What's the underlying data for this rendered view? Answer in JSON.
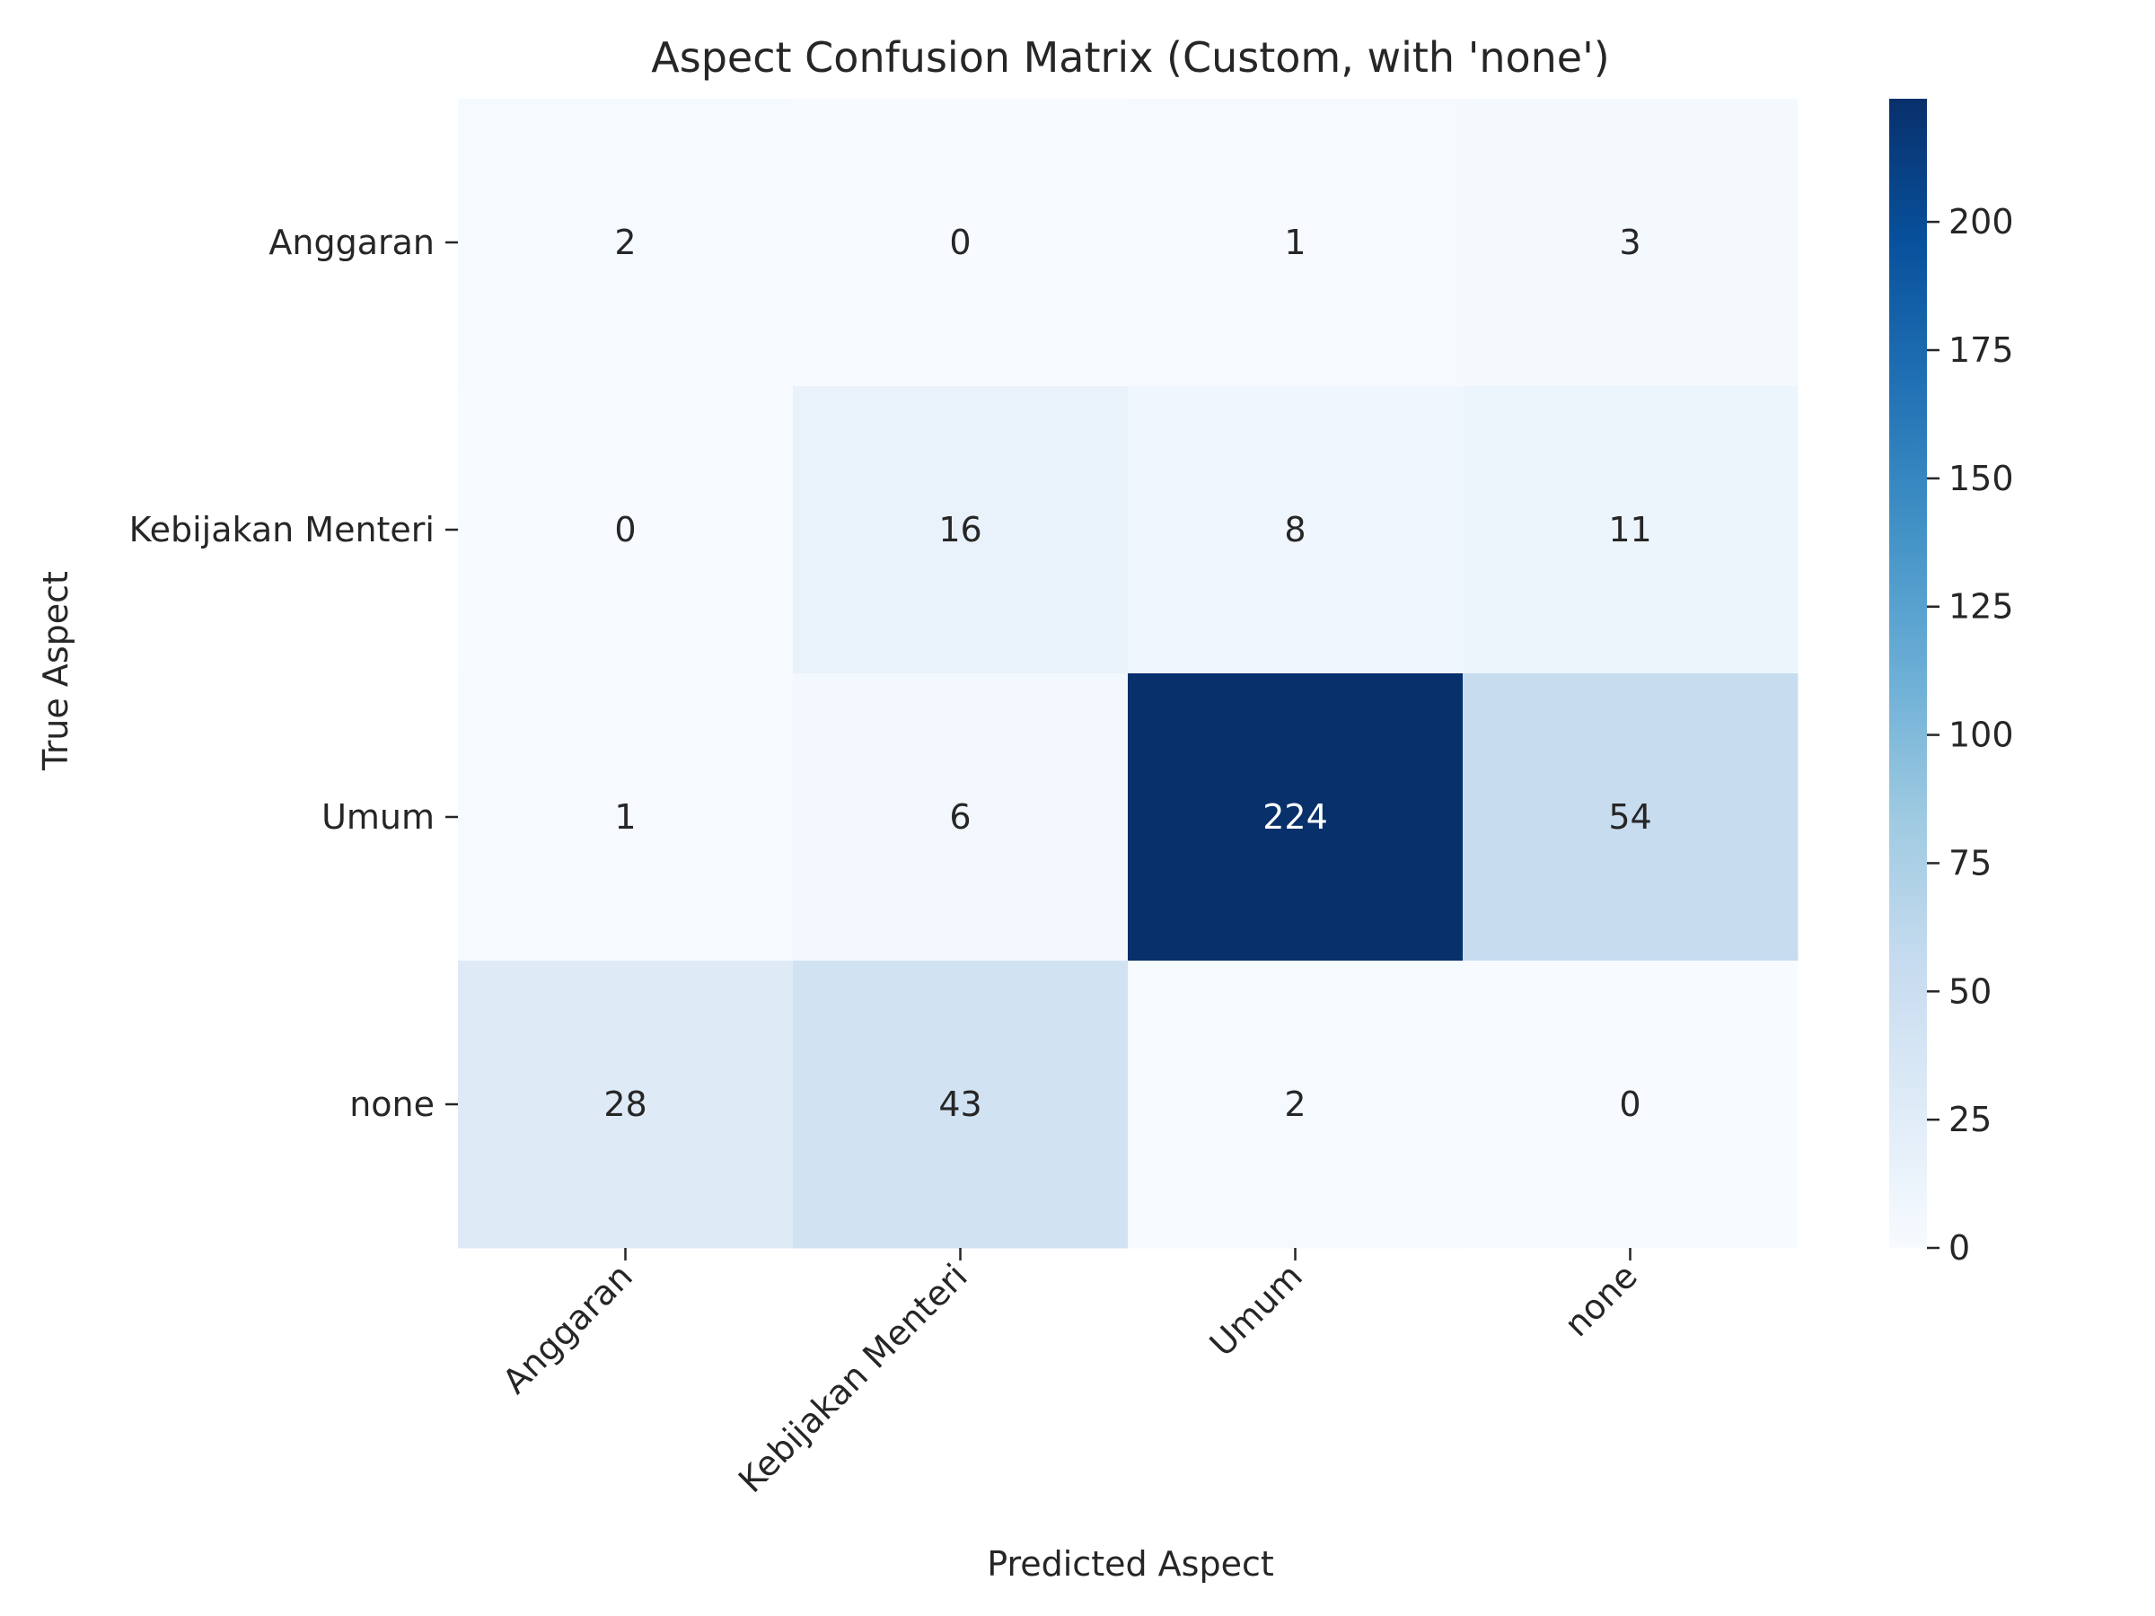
{
  "chart_data": {
    "type": "heatmap",
    "title": "Aspect Confusion Matrix (Custom, with 'none')",
    "xlabel": "Predicted Aspect",
    "ylabel": "True Aspect",
    "x_categories": [
      "Anggaran",
      "Kebijakan Menteri",
      "Umum",
      "none"
    ],
    "y_categories": [
      "Anggaran",
      "Kebijakan Menteri",
      "Umum",
      "none"
    ],
    "matrix": [
      [
        2,
        0,
        1,
        3
      ],
      [
        0,
        16,
        8,
        11
      ],
      [
        1,
        6,
        224,
        54
      ],
      [
        28,
        43,
        2,
        0
      ]
    ],
    "colormap": "Blues",
    "vmin": 0,
    "vmax": 224,
    "colorbar_ticks": [
      0,
      25,
      50,
      75,
      100,
      125,
      150,
      175,
      200
    ],
    "annotated": true,
    "grid": false
  }
}
